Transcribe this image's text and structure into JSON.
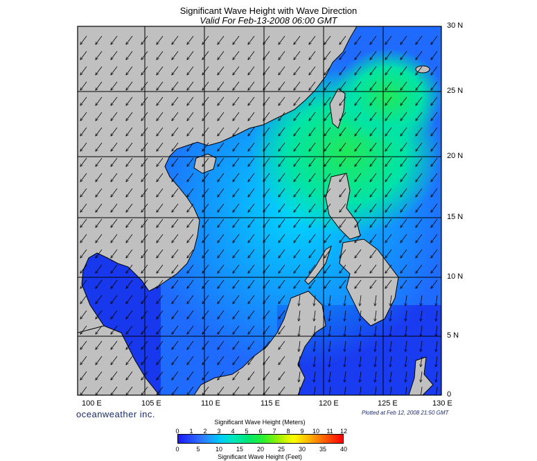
{
  "title": "Significant Wave Height with Wave Direction",
  "subtitle": "Valid For Feb-13-2008 06:00 GMT",
  "brand": "oceanweather inc.",
  "plotted": "Plotted at Feb 12, 2008 21:50 GMT",
  "lat_labels": [
    "30 N",
    "25 N",
    "20 N",
    "15 N",
    "10 N",
    "5 N",
    "0"
  ],
  "lon_labels": [
    "100 E",
    "105 E",
    "110 E",
    "115 E",
    "120 E",
    "125 E",
    "130 E"
  ],
  "colorbar": {
    "title_top": "Significant Wave Height (Meters)",
    "title_bottom": "Significant Wave Height (Feet)",
    "meters": [
      "0",
      "1",
      "2",
      "3",
      "4",
      "5",
      "6",
      "7",
      "8",
      "9",
      "10",
      "11",
      "12"
    ],
    "feet": [
      "0",
      "5",
      "10",
      "15",
      "20",
      "25",
      "30",
      "35",
      "40"
    ]
  },
  "colors": {
    "land": "#c0c0c0",
    "deep": "#0000aa",
    "low": "#1e3cff",
    "mid": "#00c8ff",
    "high": "#2ee86a"
  },
  "wave_direction": "NE to SW"
}
